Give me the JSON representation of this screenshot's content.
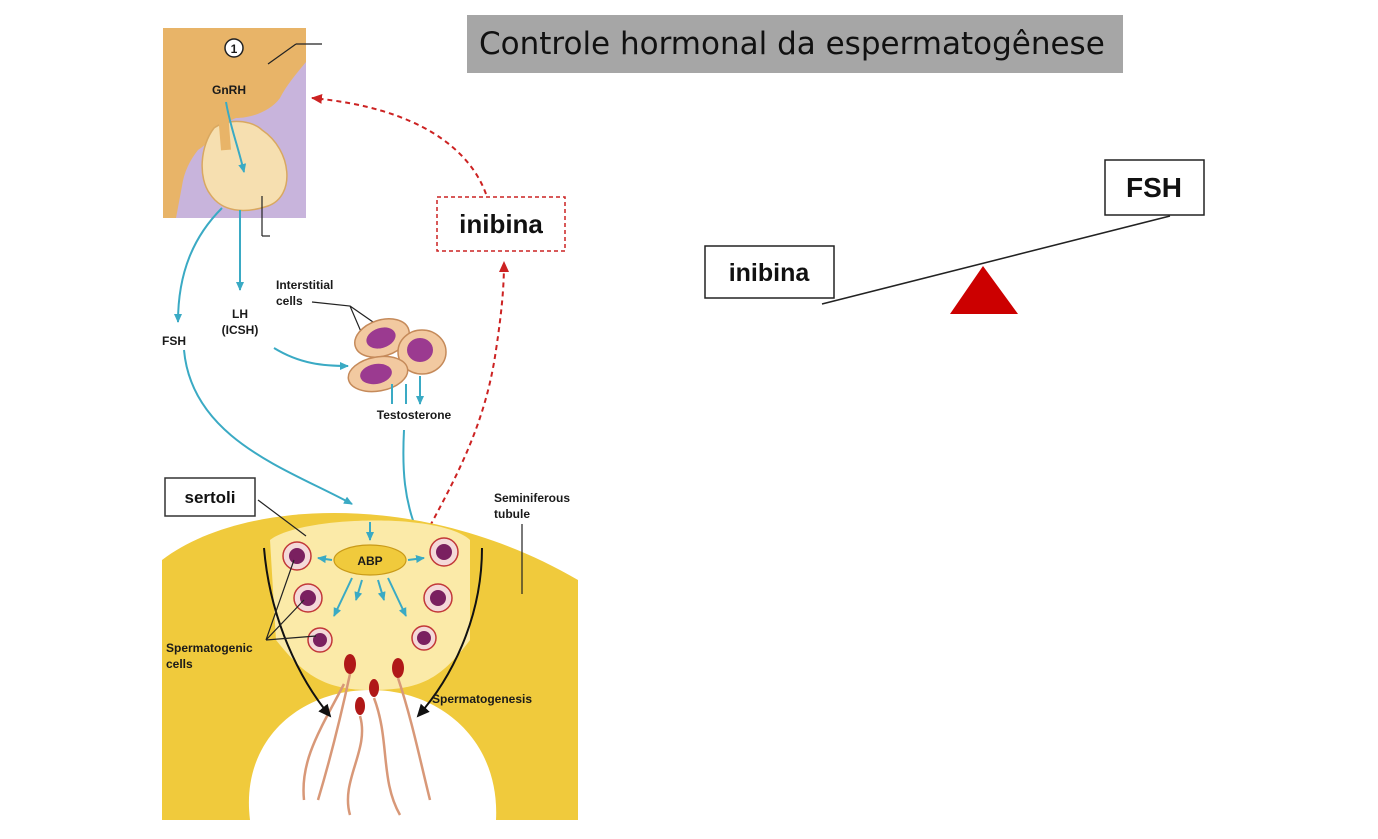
{
  "title": "Controle hormonal da espermatogênese",
  "figure": {
    "marker": "1",
    "gnrh": "GnRH",
    "fsh": "FSH",
    "lh": "LH",
    "icsh": "(ICSH)",
    "interstitial_line1": "Interstitial",
    "interstitial_line2": "cells",
    "testosterone": "Testosterone",
    "inhibin": "inibina",
    "sertoli": "sertoli",
    "seminiferous_line1": "Seminiferous",
    "seminiferous_line2": "tubule",
    "abp": "ABP",
    "spermatogenic_line1": "Spermatogenic",
    "spermatogenic_line2": "cells",
    "spermatogenesis": "Spermatogenesis"
  },
  "balance": {
    "left_label": "inibina",
    "right_label": "FSH",
    "fulcrum_color": "#cc0000"
  },
  "colors": {
    "hypothalamus": "#e8b468",
    "pituitary_bg": "#c8b4dc",
    "pituitary": "#f6dfb0",
    "tubule": "#f0ca3c",
    "lumen_inner": "#fbeaa8",
    "hormone_arrow": "#3aaac4",
    "feedback_arrow": "#cc2222"
  }
}
